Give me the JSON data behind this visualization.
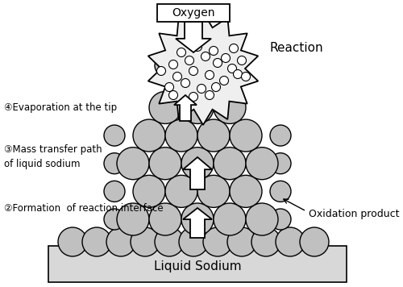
{
  "bg_color": "#ffffff",
  "sodium_color": "#c0c0c0",
  "sodium_edge": "#000000",
  "text_color": "#000000",
  "labels": {
    "oxygen": "Oxygen",
    "reaction": "Reaction",
    "evaporation": "④Evaporation at the tip",
    "mass_transfer": "③Mass transfer path\nof liquid sodium",
    "formation": "②Formation  of reaction interface",
    "oxidation": "Oxidation product",
    "liquid_sodium": "Liquid Sodium"
  },
  "fig_width": 5.0,
  "fig_height": 3.56,
  "dpi": 100
}
